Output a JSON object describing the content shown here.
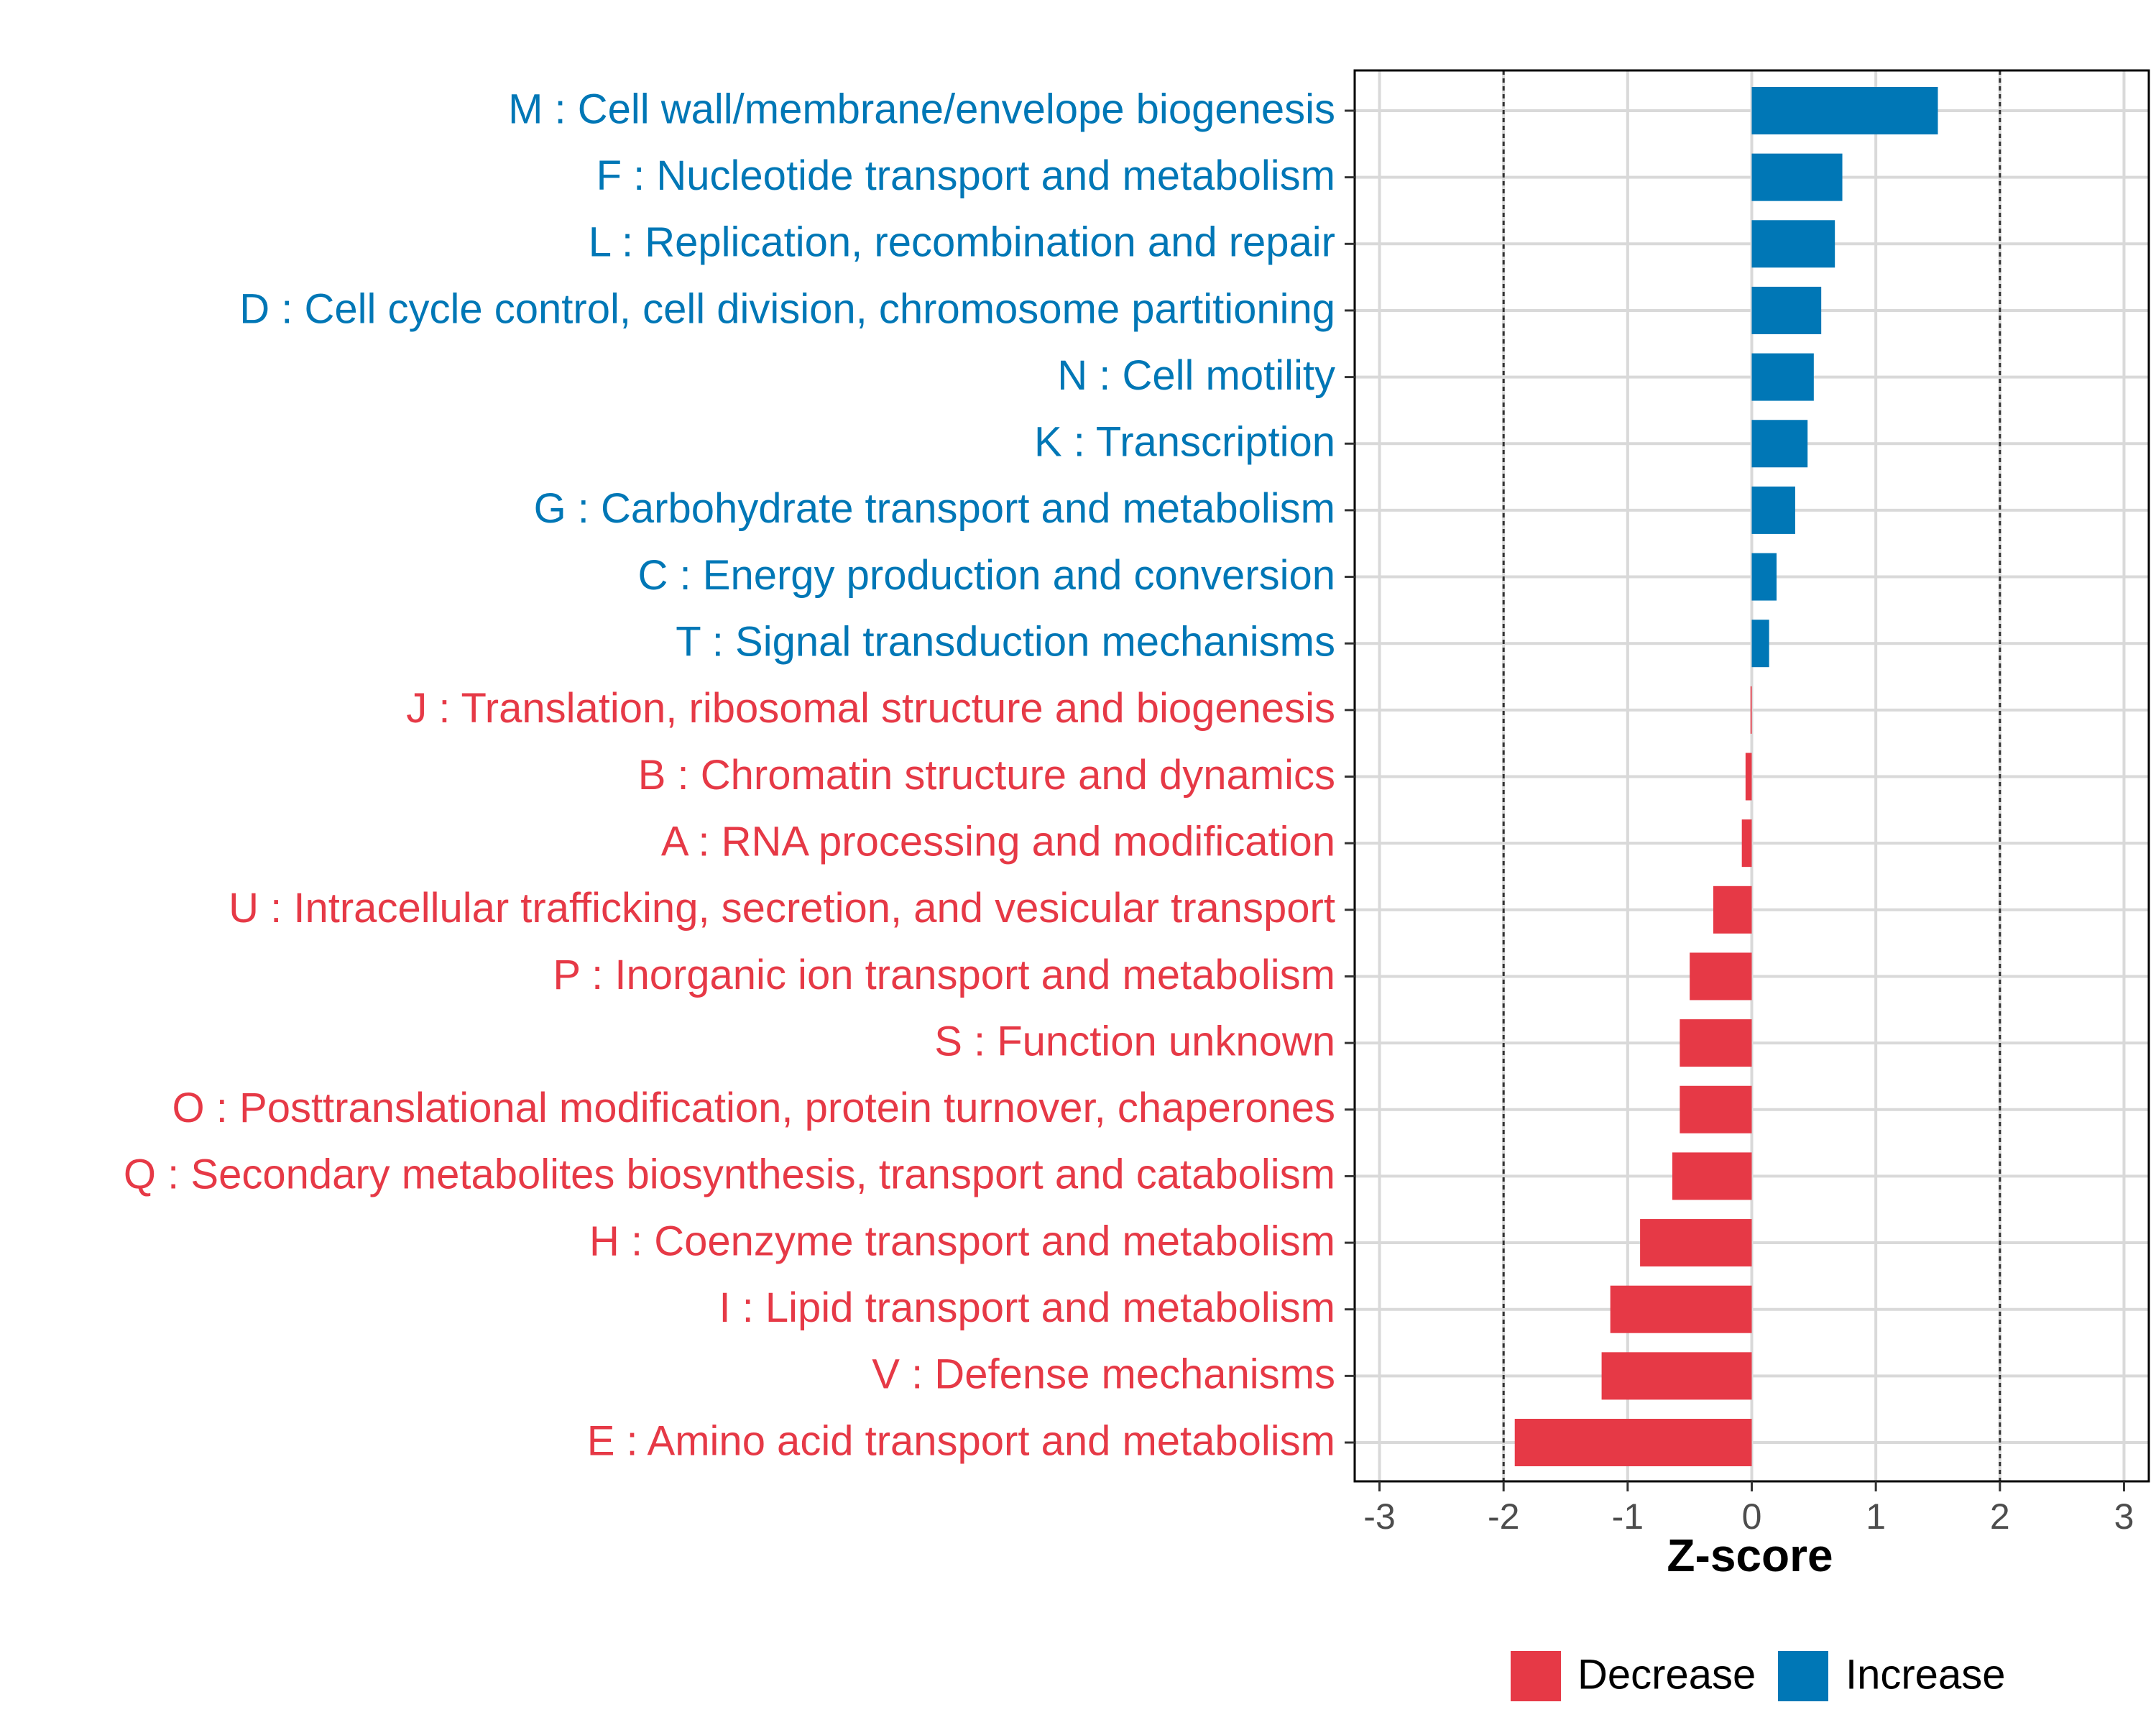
{
  "chart_data": {
    "type": "bar",
    "orientation": "horizontal",
    "xlabel": "Z-score",
    "ylabel": "",
    "xlim": [
      -3.2,
      3.2
    ],
    "x_ticks": [
      -3,
      -2,
      -1,
      0,
      1,
      2,
      3
    ],
    "x_tick_labels": [
      "-3",
      "-2",
      "-1",
      "0",
      "1",
      "2",
      "3"
    ],
    "reference_lines": [
      -2,
      2
    ],
    "grid": true,
    "legend_position": "bottom",
    "legend": [
      {
        "label": "Decrease",
        "color": "#e63946"
      },
      {
        "label": "Increase",
        "color": "#0077b6"
      }
    ],
    "categories": [
      "M : Cell wall/membrane/envelope biogenesis",
      "F : Nucleotide transport and metabolism",
      "L : Replication, recombination and repair",
      "D : Cell cycle control, cell division, chromosome partitioning",
      "N : Cell motility",
      "K : Transcription",
      "G : Carbohydrate transport and metabolism",
      "C : Energy production and conversion",
      "T : Signal transduction mechanisms",
      "J : Translation, ribosomal structure and biogenesis",
      "B : Chromatin structure and dynamics",
      "A : RNA processing and modification",
      "U : Intracellular trafficking, secretion, and vesicular transport",
      "P : Inorganic ion transport and metabolism",
      "S : Function unknown",
      "O : Posttranslational modification, protein turnover, chaperones",
      "Q : Secondary metabolites biosynthesis, transport and catabolism",
      "H : Coenzyme transport and metabolism",
      "I : Lipid transport and metabolism",
      "V : Defense mechanisms",
      "E : Amino acid transport and metabolism"
    ],
    "values": [
      1.5,
      0.73,
      0.67,
      0.56,
      0.5,
      0.45,
      0.35,
      0.2,
      0.14,
      -0.01,
      -0.05,
      -0.08,
      -0.31,
      -0.5,
      -0.58,
      -0.58,
      -0.64,
      -0.9,
      -1.14,
      -1.21,
      -1.91
    ],
    "direction": [
      "Increase",
      "Increase",
      "Increase",
      "Increase",
      "Increase",
      "Increase",
      "Increase",
      "Increase",
      "Increase",
      "Decrease",
      "Decrease",
      "Decrease",
      "Decrease",
      "Decrease",
      "Decrease",
      "Decrease",
      "Decrease",
      "Decrease",
      "Decrease",
      "Decrease",
      "Decrease"
    ]
  }
}
